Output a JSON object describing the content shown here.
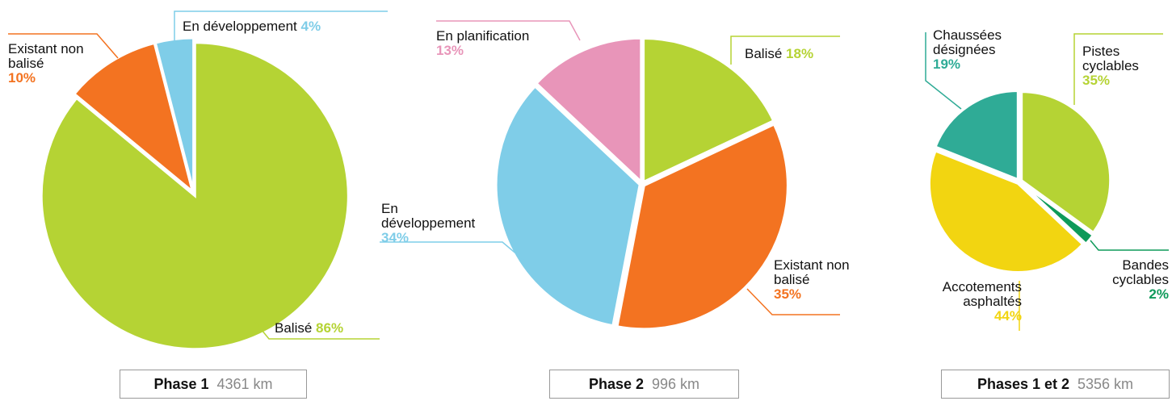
{
  "chart_data": [
    {
      "type": "pie",
      "categories": [
        "Balisé",
        "Existant non balisé",
        "En développement"
      ],
      "values": [
        86,
        10,
        4
      ],
      "value_labels": [
        "86%",
        "10%",
        "4%"
      ],
      "colors": [
        "#b5d334",
        "#f37321",
        "#7fcde8"
      ],
      "caption": {
        "title": "Phase 1",
        "total": "4361 km"
      }
    },
    {
      "type": "pie",
      "categories": [
        "Balisé",
        "Existant non balisé",
        "En développement",
        "En planification"
      ],
      "values": [
        18,
        35,
        34,
        13
      ],
      "value_labels": [
        "18%",
        "35%",
        "34%",
        "13%"
      ],
      "colors": [
        "#b5d334",
        "#f37321",
        "#7fcde8",
        "#e895b9"
      ],
      "caption": {
        "title": "Phase 2",
        "total": "996 km"
      }
    },
    {
      "type": "pie",
      "categories": [
        "Pistes cyclables",
        "Bandes cyclables",
        "Accotements asphaltés",
        "Chaussées désignées"
      ],
      "values": [
        35,
        2,
        44,
        19
      ],
      "value_labels": [
        "35%",
        "2%",
        "44%",
        "19%"
      ],
      "colors": [
        "#b5d334",
        "#0e9a5a",
        "#f2d511",
        "#2fab96"
      ],
      "caption": {
        "title": "Phases 1 et 2",
        "total": "5356 km"
      }
    }
  ]
}
